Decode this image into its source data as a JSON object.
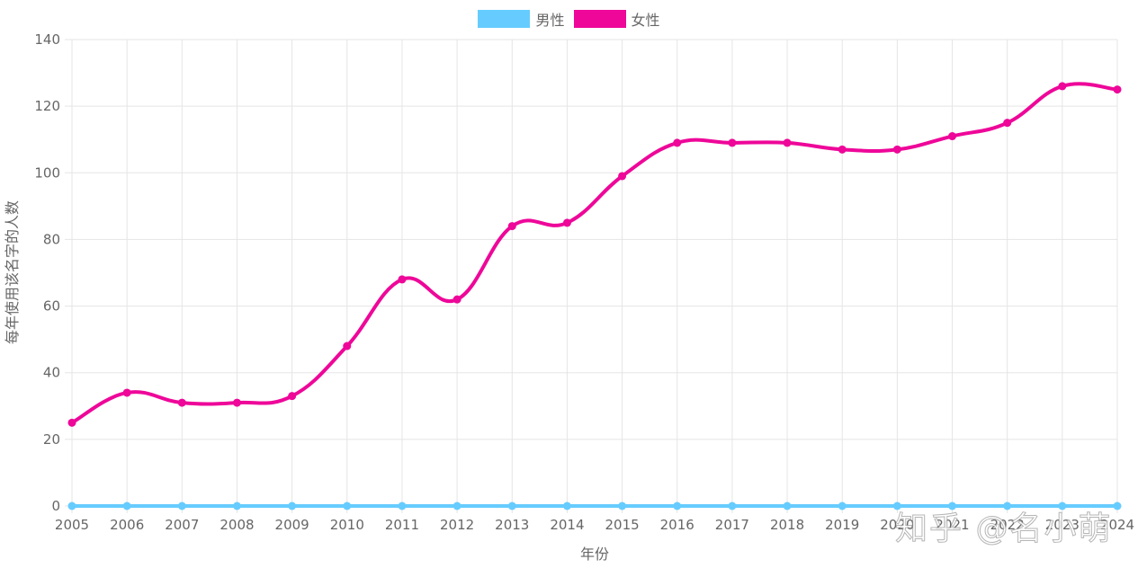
{
  "legend": {
    "male_label": "男性",
    "female_label": "女性"
  },
  "colors": {
    "male": "#66ccff",
    "female": "#ee0799",
    "grid": "#e5e5e5",
    "axis_text": "#666666"
  },
  "watermark": "知乎 @名小萌",
  "chart_data": {
    "type": "line",
    "xlabel": "年份",
    "ylabel": "每年使用该名字的人数",
    "ylim": [
      0,
      140
    ],
    "yticks": [
      0,
      20,
      40,
      60,
      80,
      100,
      120,
      140
    ],
    "x": [
      "2005",
      "2006",
      "2007",
      "2008",
      "2009",
      "2010",
      "2011",
      "2012",
      "2013",
      "2014",
      "2015",
      "2016",
      "2017",
      "2018",
      "2019",
      "2020",
      "2021",
      "2022",
      "2023",
      "2024"
    ],
    "grid": true,
    "legend_position": "top-center",
    "series": [
      {
        "name": "男性",
        "values": [
          0,
          0,
          0,
          0,
          0,
          0,
          0,
          0,
          0,
          0,
          0,
          0,
          0,
          0,
          0,
          0,
          0,
          0,
          0,
          0
        ]
      },
      {
        "name": "女性",
        "values": [
          25,
          34,
          31,
          31,
          33,
          48,
          68,
          62,
          84,
          85,
          99,
          109,
          109,
          109,
          107,
          107,
          111,
          115,
          126,
          125
        ]
      }
    ]
  }
}
